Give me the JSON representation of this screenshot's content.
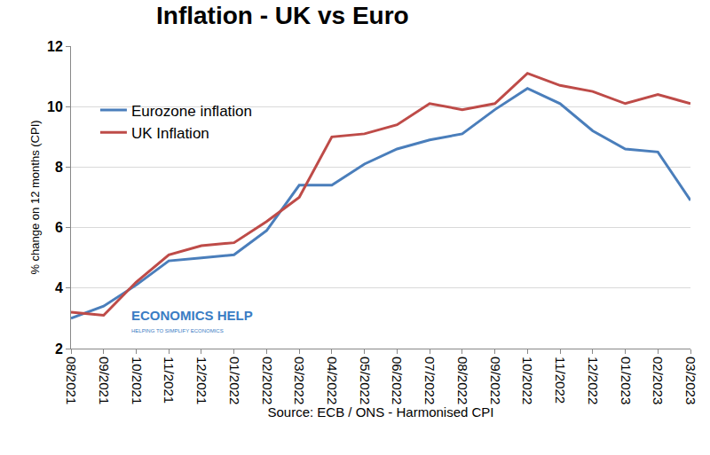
{
  "chart_data": {
    "type": "line",
    "title": "Inflation - UK vs Euro",
    "x_label": "Source: ECB / ONS - Harmonised CPI",
    "y_label": "% change on 12 months (CPI)",
    "annotations": [
      "ECONOMICS HELP",
      "HELPING TO SIMPLIFY ECONOMICS"
    ],
    "categories": [
      "08/2021",
      "09/2021",
      "10/2021",
      "11/2021",
      "12/2021",
      "01/2022",
      "02/2022",
      "03/2022",
      "04/2022",
      "05/2022",
      "06/2022",
      "07/2022",
      "08/2022",
      "09/2022",
      "10/2022",
      "11/2022",
      "12/2022",
      "01/2023",
      "02/2023",
      "03/2023"
    ],
    "series": [
      {
        "name": "Eurozone inflation",
        "color": "#4a7ebb",
        "values": [
          3.0,
          3.4,
          4.1,
          4.9,
          5.0,
          5.1,
          5.9,
          7.4,
          7.4,
          8.1,
          8.6,
          8.9,
          9.1,
          9.9,
          10.6,
          10.1,
          9.2,
          8.6,
          8.5,
          6.9
        ]
      },
      {
        "name": "UK Inflation",
        "color": "#be4b48",
        "values": [
          3.2,
          3.1,
          4.2,
          5.1,
          5.4,
          5.5,
          6.2,
          7.0,
          9.0,
          9.1,
          9.4,
          10.1,
          9.9,
          10.1,
          11.1,
          10.7,
          10.5,
          10.1,
          10.4,
          10.1
        ]
      }
    ],
    "ylim": [
      2,
      12
    ],
    "yticks": [
      2,
      4,
      6,
      8,
      10,
      12
    ],
    "grid": true,
    "legend": "upper left"
  }
}
